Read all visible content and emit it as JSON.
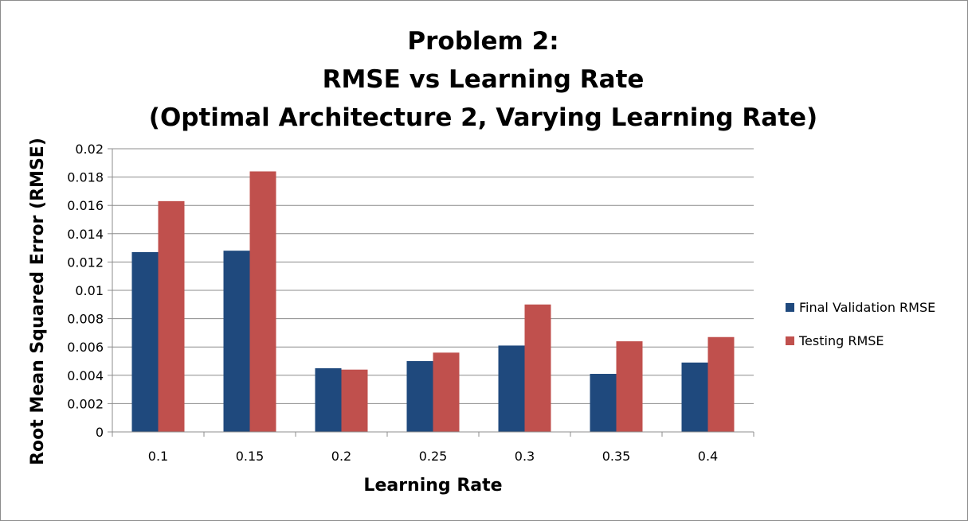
{
  "chart_data": {
    "type": "bar",
    "title_lines": [
      "Problem 2:",
      "RMSE vs Learning Rate",
      "(Optimal Architecture 2, Varying Learning Rate)"
    ],
    "xlabel": "Learning Rate",
    "ylabel": "Root Mean Squared Error (RMSE)",
    "categories": [
      "0.1",
      "0.15",
      "0.2",
      "0.25",
      "0.3",
      "0.35",
      "0.4"
    ],
    "series": [
      {
        "name": "Final Validation RMSE",
        "color": "#1f497d",
        "values": [
          0.0127,
          0.0128,
          0.0045,
          0.005,
          0.0061,
          0.0041,
          0.0049
        ]
      },
      {
        "name": "Testing RMSE",
        "color": "#c0504d",
        "values": [
          0.0163,
          0.0184,
          0.0044,
          0.0056,
          0.009,
          0.0064,
          0.0067
        ]
      }
    ],
    "ylim": [
      0,
      0.02
    ],
    "yticks": [
      "0",
      "0.002",
      "0.004",
      "0.006",
      "0.008",
      "0.01",
      "0.012",
      "0.014",
      "0.016",
      "0.018",
      "0.02"
    ],
    "grid": true,
    "legend_position": "right"
  }
}
